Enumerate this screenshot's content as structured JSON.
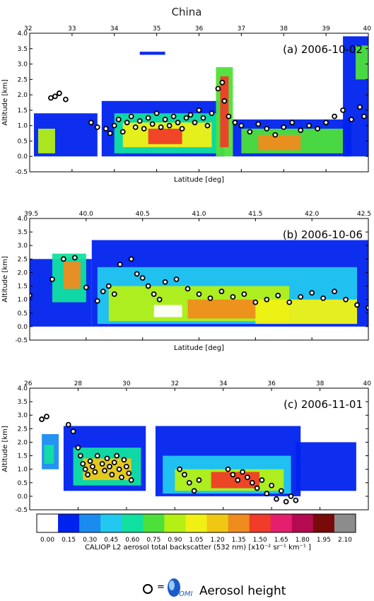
{
  "figure": {
    "title": "China",
    "colorbar_label": "CALIOP L2 aerosol total backscatter (532 nm) [x10⁻² sr⁻¹ km⁻¹ ]",
    "legend_text": "Aerosol height",
    "legend_equals": "=",
    "omi_label": "OMI"
  },
  "colorbar": {
    "ticks": [
      "0.00",
      "0.15",
      "0.30",
      "0.45",
      "0.60",
      "0.75",
      "0.90",
      "1.05",
      "1.20",
      "1.35",
      "1.50",
      "1.65",
      "1.80",
      "1.95",
      "2.10"
    ],
    "colors": [
      "#ffffff",
      "#0022ee",
      "#1a8cf0",
      "#22c8f0",
      "#10e0a0",
      "#4ee03a",
      "#b4f014",
      "#f0f014",
      "#f0c814",
      "#f08c1e",
      "#f03c28",
      "#e61e6e",
      "#b40a50",
      "#780a0a",
      "#8c8c8c"
    ]
  },
  "chart_data": [
    {
      "type": "scatter",
      "panel_label": "(a) 2006-10-02",
      "xlabel": "Latitude [deg]",
      "ylabel": "Altitude [km]",
      "xlim": [
        32,
        40
      ],
      "ylim": [
        -0.5,
        4.0
      ],
      "xticks": [
        "32",
        "33",
        "34",
        "35",
        "36",
        "37",
        "38",
        "39",
        "40"
      ],
      "yticks": [
        "-0.5",
        "0.0",
        "0.5",
        "1.0",
        "1.5",
        "2.0",
        "2.5",
        "3.0",
        "3.5",
        "4.0"
      ],
      "backscatter_bands": [
        {
          "x0": 32.1,
          "x1": 33.6,
          "y0": 0.0,
          "y1": 1.4,
          "level": 1
        },
        {
          "x0": 32.2,
          "x1": 32.6,
          "y0": 0.1,
          "y1": 0.9,
          "level": 6
        },
        {
          "x0": 33.7,
          "x1": 36.6,
          "y0": 0.0,
          "y1": 1.8,
          "level": 1
        },
        {
          "x0": 34.0,
          "x1": 36.5,
          "y0": 0.1,
          "y1": 1.4,
          "level": 4
        },
        {
          "x0": 34.2,
          "x1": 36.3,
          "y0": 0.3,
          "y1": 1.1,
          "level": 7
        },
        {
          "x0": 34.8,
          "x1": 35.6,
          "y0": 0.4,
          "y1": 0.9,
          "level": 10
        },
        {
          "x0": 34.6,
          "x1": 35.2,
          "y0": 3.3,
          "y1": 3.4,
          "level": 1
        },
        {
          "x0": 36.4,
          "x1": 36.8,
          "y0": 0.0,
          "y1": 2.9,
          "level": 5
        },
        {
          "x0": 36.5,
          "x1": 36.7,
          "y0": 0.3,
          "y1": 2.6,
          "level": 10
        },
        {
          "x0": 36.8,
          "x1": 39.6,
          "y0": 0.0,
          "y1": 1.2,
          "level": 1
        },
        {
          "x0": 37.0,
          "x1": 39.4,
          "y0": 0.1,
          "y1": 0.9,
          "level": 5
        },
        {
          "x0": 37.4,
          "x1": 38.4,
          "y0": 0.2,
          "y1": 0.7,
          "level": 9
        },
        {
          "x0": 39.4,
          "x1": 40.0,
          "y0": 0.0,
          "y1": 3.9,
          "level": 1
        },
        {
          "x0": 39.7,
          "x1": 40.0,
          "y0": 2.5,
          "y1": 3.6,
          "level": 5
        }
      ],
      "aerosol_height_points": [
        [
          32.5,
          1.9
        ],
        [
          32.6,
          1.95
        ],
        [
          32.7,
          2.05
        ],
        [
          32.85,
          1.85
        ],
        [
          33.45,
          1.1
        ],
        [
          33.6,
          0.95
        ],
        [
          33.8,
          0.9
        ],
        [
          33.9,
          0.75
        ],
        [
          34.0,
          1.0
        ],
        [
          34.1,
          1.2
        ],
        [
          34.2,
          0.8
        ],
        [
          34.3,
          1.1
        ],
        [
          34.4,
          1.3
        ],
        [
          34.5,
          0.95
        ],
        [
          34.6,
          1.15
        ],
        [
          34.7,
          0.9
        ],
        [
          34.8,
          1.25
        ],
        [
          34.9,
          1.05
        ],
        [
          35.0,
          1.4
        ],
        [
          35.1,
          0.95
        ],
        [
          35.2,
          1.2
        ],
        [
          35.3,
          1.0
        ],
        [
          35.4,
          1.3
        ],
        [
          35.5,
          1.1
        ],
        [
          35.6,
          0.9
        ],
        [
          35.7,
          1.25
        ],
        [
          35.8,
          1.35
        ],
        [
          35.9,
          1.1
        ],
        [
          36.0,
          1.5
        ],
        [
          36.1,
          1.25
        ],
        [
          36.2,
          1.0
        ],
        [
          36.3,
          1.4
        ],
        [
          36.45,
          2.2
        ],
        [
          36.55,
          2.4
        ],
        [
          36.6,
          1.8
        ],
        [
          36.7,
          1.3
        ],
        [
          36.85,
          1.1
        ],
        [
          37.0,
          1.0
        ],
        [
          37.2,
          0.8
        ],
        [
          37.4,
          1.05
        ],
        [
          37.6,
          0.9
        ],
        [
          37.8,
          0.7
        ],
        [
          38.0,
          0.95
        ],
        [
          38.2,
          1.1
        ],
        [
          38.4,
          0.85
        ],
        [
          38.6,
          1.0
        ],
        [
          38.8,
          0.9
        ],
        [
          39.0,
          1.1
        ],
        [
          39.2,
          1.3
        ],
        [
          39.4,
          1.5
        ],
        [
          39.6,
          1.2
        ],
        [
          39.8,
          1.6
        ],
        [
          39.9,
          1.3
        ]
      ]
    },
    {
      "type": "scatter",
      "panel_label": "(b) 2006-10-06",
      "xlabel": "Latitude [deg]",
      "ylabel": "Altitude [km]",
      "xlim": [
        39.5,
        42.5
      ],
      "ylim": [
        -0.5,
        4.0
      ],
      "xticks": [
        "39.5",
        "40.0",
        "40.5",
        "41.0",
        "41.5",
        "42.0",
        "42.5"
      ],
      "yticks": [
        "-0.5",
        "0.0",
        "0.5",
        "1.0",
        "1.5",
        "2.0",
        "2.5",
        "3.0",
        "3.5",
        "4.0"
      ],
      "backscatter_bands": [
        {
          "x0": 39.5,
          "x1": 40.05,
          "y0": 0.0,
          "y1": 2.5,
          "level": 1
        },
        {
          "x0": 39.7,
          "x1": 40.0,
          "y0": 0.9,
          "y1": 2.7,
          "level": 4
        },
        {
          "x0": 39.8,
          "x1": 39.95,
          "y0": 1.4,
          "y1": 2.4,
          "level": 9
        },
        {
          "x0": 40.05,
          "x1": 42.5,
          "y0": 0.0,
          "y1": 3.2,
          "level": 1
        },
        {
          "x0": 40.1,
          "x1": 42.4,
          "y0": 0.1,
          "y1": 2.2,
          "level": 3
        },
        {
          "x0": 40.2,
          "x1": 41.8,
          "y0": 0.2,
          "y1": 1.5,
          "level": 6
        },
        {
          "x0": 40.9,
          "x1": 41.5,
          "y0": 0.3,
          "y1": 1.0,
          "level": 9
        },
        {
          "x0": 40.6,
          "x1": 40.85,
          "y0": 0.35,
          "y1": 0.8,
          "level": 0
        },
        {
          "x0": 41.5,
          "x1": 42.4,
          "y0": 0.1,
          "y1": 1.0,
          "level": 7
        }
      ],
      "aerosol_height_points": [
        [
          39.5,
          1.15
        ],
        [
          39.7,
          1.75
        ],
        [
          39.8,
          2.5
        ],
        [
          39.9,
          2.55
        ],
        [
          40.0,
          1.45
        ],
        [
          40.1,
          0.95
        ],
        [
          40.15,
          1.3
        ],
        [
          40.2,
          1.5
        ],
        [
          40.25,
          1.2
        ],
        [
          40.3,
          2.3
        ],
        [
          40.4,
          2.5
        ],
        [
          40.45,
          1.95
        ],
        [
          40.5,
          1.8
        ],
        [
          40.55,
          1.5
        ],
        [
          40.6,
          1.2
        ],
        [
          40.65,
          1.0
        ],
        [
          40.7,
          1.65
        ],
        [
          40.8,
          1.75
        ],
        [
          40.9,
          1.4
        ],
        [
          41.0,
          1.2
        ],
        [
          41.1,
          1.05
        ],
        [
          41.2,
          1.3
        ],
        [
          41.3,
          1.1
        ],
        [
          41.4,
          1.2
        ],
        [
          41.5,
          0.9
        ],
        [
          41.6,
          1.0
        ],
        [
          41.7,
          1.15
        ],
        [
          41.8,
          0.9
        ],
        [
          41.9,
          1.1
        ],
        [
          42.0,
          1.25
        ],
        [
          42.1,
          1.05
        ],
        [
          42.2,
          1.3
        ],
        [
          42.3,
          1.0
        ],
        [
          42.4,
          0.8
        ],
        [
          42.5,
          0.7
        ]
      ]
    },
    {
      "type": "scatter",
      "panel_label": "(c) 2006-11-01",
      "xlabel": "Latitude [deg]",
      "ylabel": "Altitude [km]",
      "xlim": [
        26,
        40
      ],
      "ylim": [
        -0.5,
        4.0
      ],
      "xticks": [
        "26",
        "28",
        "30",
        "32",
        "34",
        "36",
        "38",
        "40"
      ],
      "yticks": [
        "-0.5",
        "0.0",
        "0.5",
        "1.0",
        "1.5",
        "2.0",
        "2.5",
        "3.0",
        "3.5",
        "4.0"
      ],
      "backscatter_bands": [
        {
          "x0": 26.5,
          "x1": 27.2,
          "y0": 1.0,
          "y1": 2.3,
          "level": 2
        },
        {
          "x0": 26.6,
          "x1": 27.0,
          "y0": 1.2,
          "y1": 1.9,
          "level": 4
        },
        {
          "x0": 27.4,
          "x1": 30.8,
          "y0": 0.2,
          "y1": 2.6,
          "level": 1
        },
        {
          "x0": 27.8,
          "x1": 30.6,
          "y0": 0.4,
          "y1": 1.8,
          "level": 4
        },
        {
          "x0": 28.2,
          "x1": 30.2,
          "y0": 0.6,
          "y1": 1.4,
          "level": 8
        },
        {
          "x0": 31.2,
          "x1": 37.2,
          "y0": 0.0,
          "y1": 2.6,
          "level": 1
        },
        {
          "x0": 31.5,
          "x1": 36.8,
          "y0": 0.1,
          "y1": 1.5,
          "level": 3
        },
        {
          "x0": 32.0,
          "x1": 36.5,
          "y0": 0.2,
          "y1": 1.0,
          "level": 6
        },
        {
          "x0": 33.5,
          "x1": 35.5,
          "y0": 0.3,
          "y1": 0.9,
          "level": 10
        },
        {
          "x0": 37.0,
          "x1": 39.5,
          "y0": 0.2,
          "y1": 2.0,
          "level": 1
        }
      ],
      "aerosol_height_points": [
        [
          26.5,
          2.85
        ],
        [
          26.7,
          2.95
        ],
        [
          27.6,
          2.65
        ],
        [
          27.8,
          2.4
        ],
        [
          28.0,
          1.8
        ],
        [
          28.1,
          1.5
        ],
        [
          28.2,
          1.2
        ],
        [
          28.3,
          1.0
        ],
        [
          28.4,
          0.8
        ],
        [
          28.5,
          1.3
        ],
        [
          28.6,
          1.1
        ],
        [
          28.7,
          0.9
        ],
        [
          28.8,
          1.5
        ],
        [
          29.0,
          1.2
        ],
        [
          29.1,
          0.95
        ],
        [
          29.2,
          1.4
        ],
        [
          29.3,
          1.1
        ],
        [
          29.4,
          0.8
        ],
        [
          29.5,
          1.25
        ],
        [
          29.6,
          1.5
        ],
        [
          29.7,
          1.0
        ],
        [
          29.8,
          0.7
        ],
        [
          29.9,
          1.35
        ],
        [
          30.0,
          1.1
        ],
        [
          30.1,
          0.85
        ],
        [
          30.2,
          0.6
        ],
        [
          32.2,
          1.0
        ],
        [
          32.4,
          0.8
        ],
        [
          32.6,
          0.5
        ],
        [
          32.8,
          0.2
        ],
        [
          33.0,
          0.6
        ],
        [
          34.2,
          1.0
        ],
        [
          34.4,
          0.8
        ],
        [
          34.6,
          0.6
        ],
        [
          34.8,
          0.9
        ],
        [
          35.0,
          0.7
        ],
        [
          35.2,
          0.5
        ],
        [
          35.4,
          0.3
        ],
        [
          35.6,
          0.6
        ],
        [
          35.8,
          0.1
        ],
        [
          36.0,
          0.4
        ],
        [
          36.2,
          -0.1
        ],
        [
          36.4,
          0.2
        ],
        [
          36.6,
          -0.2
        ],
        [
          36.8,
          0.0
        ],
        [
          37.0,
          -0.15
        ]
      ]
    }
  ]
}
